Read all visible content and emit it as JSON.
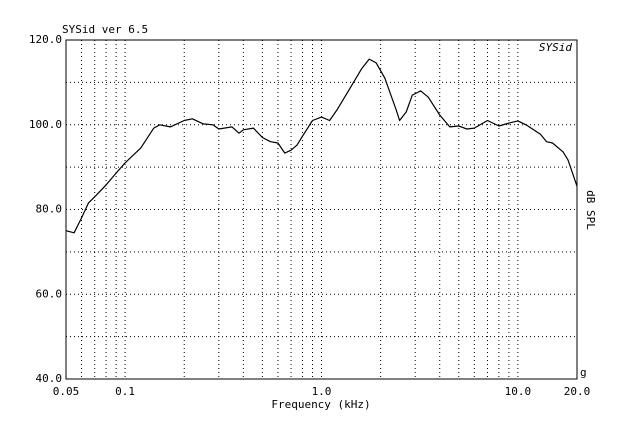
{
  "chart_data": {
    "type": "line",
    "title": "SYSid ver 6.5",
    "watermark": "SYSid",
    "xlabel": "Frequency (kHz)",
    "ylabel": "dB SPL",
    "corner_mark": "g",
    "xscale": "log",
    "grid": true,
    "xlim": [
      0.05,
      20
    ],
    "ylim": [
      40,
      120
    ],
    "xticks": [
      0.05,
      0.1,
      {
        "value": 1,
        "label": "1.0"
      },
      {
        "value": 10,
        "label": "10.0"
      },
      {
        "value": 20,
        "label": "20.0"
      }
    ],
    "xminor": [
      0.06,
      0.07,
      0.08,
      0.09,
      0.2,
      0.3,
      0.4,
      0.5,
      0.6,
      0.7,
      0.8,
      0.9,
      2,
      3,
      4,
      5,
      6,
      7,
      8,
      9
    ],
    "yticks": [
      {
        "value": 40,
        "label": "40.0"
      },
      {
        "value": 60,
        "label": "60.0"
      },
      {
        "value": 80,
        "label": "80.0"
      },
      {
        "value": 100,
        "label": "100.0"
      },
      {
        "value": 120,
        "label": "120.0"
      }
    ],
    "yminor": [
      50,
      70,
      90,
      110
    ],
    "series": [
      {
        "color": "#000000",
        "x": [
          0.05,
          0.055,
          0.06,
          0.065,
          0.07,
          0.08,
          0.09,
          0.1,
          0.12,
          0.14,
          0.15,
          0.17,
          0.2,
          0.22,
          0.25,
          0.28,
          0.3,
          0.35,
          0.38,
          0.4,
          0.45,
          0.5,
          0.55,
          0.6,
          0.65,
          0.7,
          0.75,
          0.8,
          0.9,
          1.0,
          1.1,
          1.2,
          1.4,
          1.6,
          1.75,
          1.9,
          2.1,
          2.4,
          2.5,
          2.7,
          2.9,
          3.2,
          3.5,
          4.0,
          4.5,
          5.0,
          5.5,
          6.0,
          7.0,
          8.0,
          9.0,
          10,
          11,
          13,
          14,
          15,
          17,
          18,
          20
        ],
        "values": [
          75.0,
          74.5,
          78,
          81.5,
          83,
          85.8,
          88.6,
          91,
          94.5,
          99.2,
          100,
          99.5,
          101,
          101.4,
          100.2,
          100,
          99,
          99.5,
          98,
          98.8,
          99.2,
          97,
          96,
          95.7,
          93.3,
          94,
          95.2,
          97.3,
          101,
          101.8,
          101,
          103.5,
          108.7,
          113.2,
          115.5,
          114.6,
          111,
          103.5,
          101,
          103,
          107,
          108,
          106.5,
          102.3,
          99.5,
          99.7,
          99,
          99.2,
          101,
          99.7,
          100.4,
          100.9,
          100,
          97.8,
          96,
          95.7,
          93.6,
          91.7,
          85.5
        ]
      }
    ]
  }
}
